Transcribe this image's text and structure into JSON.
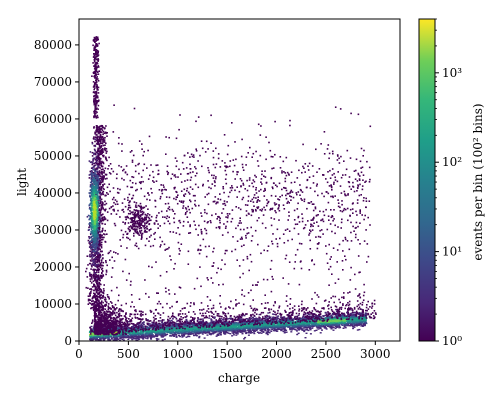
{
  "chart_data": {
    "type": "heatmap",
    "title": "",
    "xlabel": "charge",
    "ylabel": "light",
    "xlim": [
      0,
      3250
    ],
    "ylim": [
      0,
      87000
    ],
    "xticks": [
      {
        "value": 0,
        "label": "0"
      },
      {
        "value": 500,
        "label": "500"
      },
      {
        "value": 1000,
        "label": "1000"
      },
      {
        "value": 1500,
        "label": "1500"
      },
      {
        "value": 2000,
        "label": "2000"
      },
      {
        "value": 2500,
        "label": "2500"
      },
      {
        "value": 3000,
        "label": "3000"
      }
    ],
    "yticks": [
      {
        "value": 0,
        "label": "0"
      },
      {
        "value": 10000,
        "label": "10000"
      },
      {
        "value": 20000,
        "label": "20000"
      },
      {
        "value": 30000,
        "label": "30000"
      },
      {
        "value": 40000,
        "label": "40000"
      },
      {
        "value": 50000,
        "label": "50000"
      },
      {
        "value": 60000,
        "label": "60000"
      },
      {
        "value": 70000,
        "label": "70000"
      },
      {
        "value": 80000,
        "label": "80000"
      }
    ],
    "grid": false,
    "colormap": "viridis",
    "colorbar": {
      "label": "events per bin (100² bins)",
      "scale": "log",
      "range": [
        1,
        4000
      ],
      "ticks": [
        {
          "value": 1,
          "label": "10⁰"
        },
        {
          "value": 10,
          "label": "10¹"
        },
        {
          "value": 100,
          "label": "10²"
        },
        {
          "value": 1000,
          "label": "10³"
        }
      ]
    },
    "density_regions": [
      {
        "name": "low-light band",
        "x_range": [
          100,
          2900
        ],
        "y_center": [
          1500,
          6000
        ],
        "y_width": 2500,
        "peak_density": 300
      },
      {
        "name": "high-light cluster",
        "x_center": 150,
        "x_width": 60,
        "y_range": [
          22000,
          48000
        ],
        "peak_density": 400
      },
      {
        "name": "secondary cluster",
        "x_center": 600,
        "y_center": 32000,
        "peak_density": 5
      }
    ]
  },
  "colors": {
    "viridis_low": "#440154",
    "viridis_mid": "#21918c",
    "viridis_high": "#fde725"
  }
}
